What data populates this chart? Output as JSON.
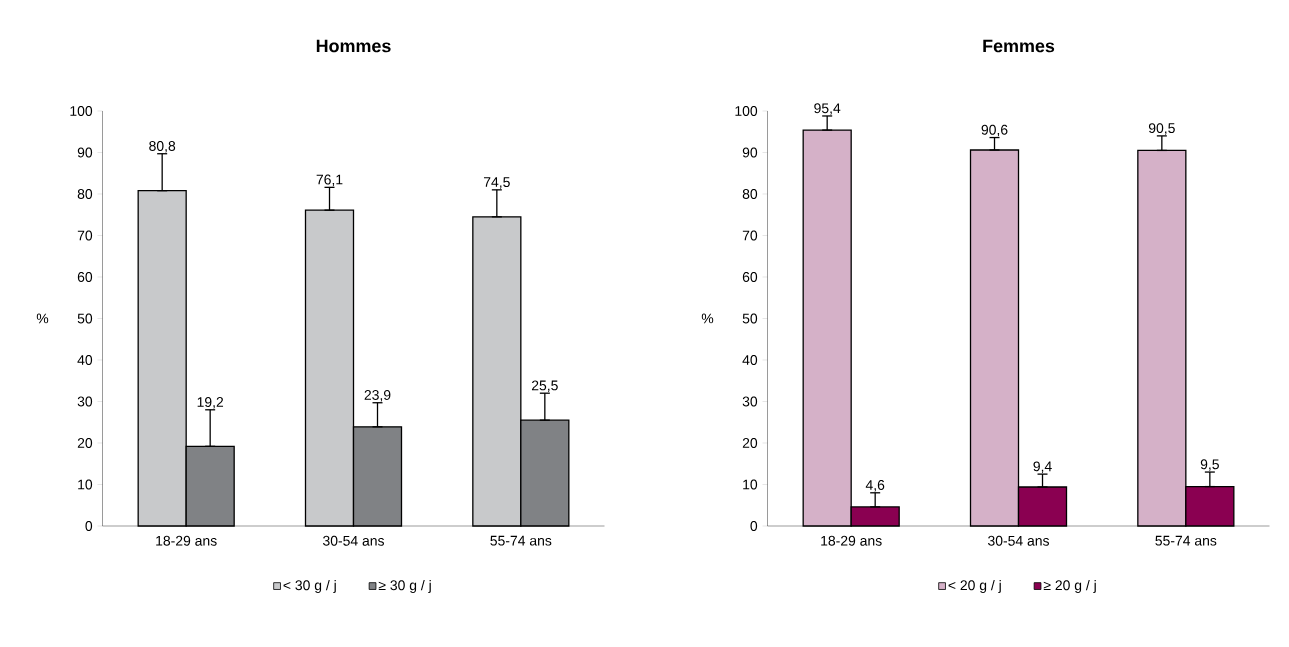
{
  "chart_data": [
    {
      "type": "bar",
      "title": "Hommes",
      "ylabel": "%",
      "categories": [
        "18-29 ans",
        "30-54 ans",
        "55-74 ans"
      ],
      "ylim": [
        0,
        100
      ],
      "yticks": [
        0,
        10,
        20,
        30,
        40,
        50,
        60,
        70,
        80,
        90,
        100
      ],
      "legend": "bottom",
      "series": [
        {
          "name": "< 30 g / j",
          "color": "#c8c9cb",
          "values": [
            80.8,
            76.1,
            74.5
          ],
          "value_labels": [
            "80,8",
            "76,1",
            "74,5"
          ],
          "errors": [
            [
              80.8,
              89.7
            ],
            [
              76.1,
              81.6
            ],
            [
              74.5,
              81
            ]
          ]
        },
        {
          "name": "≥ 30 g / j",
          "color": "#808285",
          "values": [
            19.2,
            23.9,
            25.5
          ],
          "value_labels": [
            "19,2",
            "23,9",
            "25,5"
          ],
          "errors": [
            [
              19.2,
              28
            ],
            [
              23.9,
              29.7
            ],
            [
              25.5,
              32
            ]
          ]
        }
      ]
    },
    {
      "type": "bar",
      "title": "Femmes",
      "ylabel": "%",
      "categories": [
        "18-29 ans",
        "30-54 ans",
        "55-74 ans"
      ],
      "ylim": [
        0,
        100
      ],
      "yticks": [
        0,
        10,
        20,
        30,
        40,
        50,
        60,
        70,
        80,
        90,
        100
      ],
      "legend": "bottom",
      "series": [
        {
          "name": "< 20 g / j",
          "color": "#d5b1c8",
          "values": [
            95.4,
            90.6,
            90.5
          ],
          "value_labels": [
            "95,4",
            "90,6",
            "90,5"
          ],
          "errors": [
            [
              95.4,
              98.8
            ],
            [
              90.6,
              93.6
            ],
            [
              90.5,
              94
            ]
          ]
        },
        {
          "name": "≥ 20 g / j",
          "color": "#8a0051",
          "values": [
            4.6,
            9.4,
            9.5
          ],
          "value_labels": [
            "4,6",
            "9,4",
            "9,5"
          ],
          "errors": [
            [
              4.6,
              8
            ],
            [
              9.4,
              12.5
            ],
            [
              9.5,
              13
            ]
          ]
        }
      ]
    }
  ]
}
